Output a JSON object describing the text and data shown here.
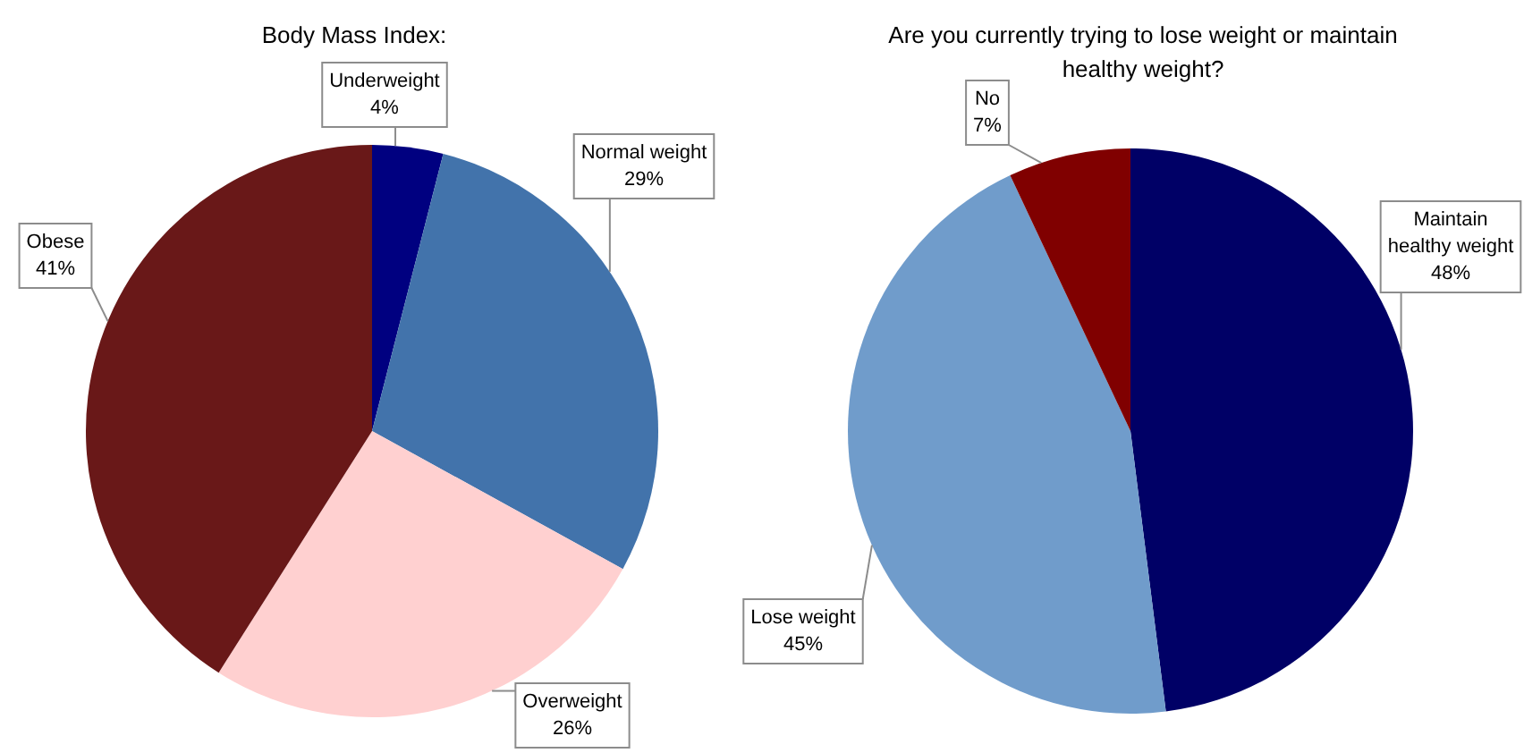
{
  "chart_data": [
    {
      "type": "pie",
      "title": "Body Mass Index:",
      "categories": [
        "Underweight",
        "Normal weight",
        "Overweight",
        "Obese"
      ],
      "values": [
        4,
        29,
        26,
        41
      ],
      "value_labels": [
        "4%",
        "29%",
        "26%",
        "41%"
      ],
      "colors": [
        "#000080",
        "#4273ab",
        "#ffd0d0",
        "#691818"
      ]
    },
    {
      "type": "pie",
      "title": "Are you currently trying to lose weight or maintain healthy weight?",
      "categories": [
        "Maintain healthy weight",
        "Lose weight",
        "No"
      ],
      "values": [
        48,
        45,
        7
      ],
      "value_labels": [
        "48%",
        "45%",
        "7%"
      ],
      "colors": [
        "#000066",
        "#709ccb",
        "#800000"
      ]
    }
  ]
}
